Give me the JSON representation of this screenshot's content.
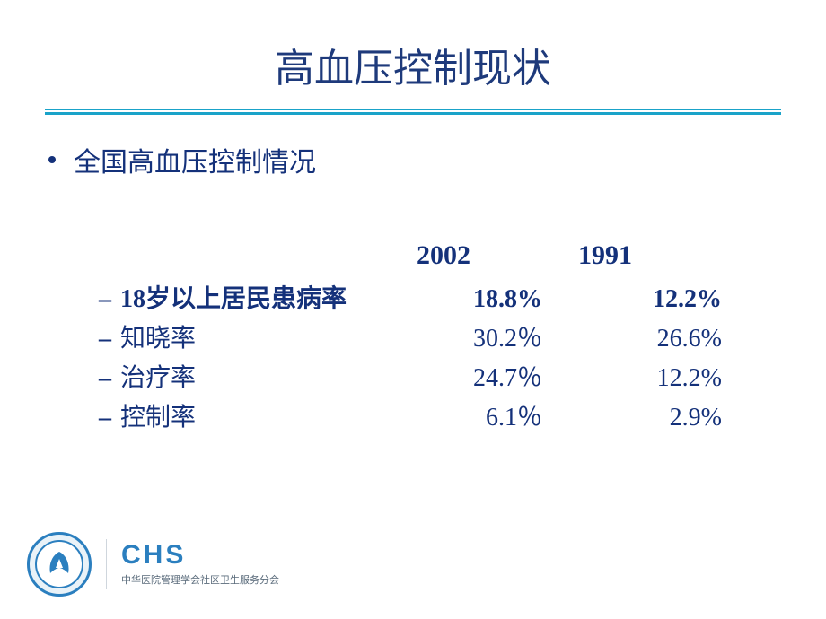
{
  "colors": {
    "title": "#1e3a7b",
    "divider": "#1aa3c9",
    "bullet": "#14317a",
    "text_primary": "#14317a",
    "logo_ring": "#2b7fbf",
    "logo_inner": "#ffffff",
    "logo_fill": "#2b7fbf",
    "chs": "#2b7fbf",
    "chs_sub": "#5a6b7b",
    "background": "#ffffff"
  },
  "typography": {
    "title_size": 44,
    "bullet_size": 30,
    "header_size": 30,
    "row_size": 28,
    "chs_size": 30,
    "chs_sub_size": 11
  },
  "layout": {
    "label_width": 290,
    "col1_width": 180,
    "col2_width": 200,
    "header_indent": 354,
    "header_gap_col1": 180,
    "header_gap_col2": 200
  },
  "title": "高血压控制现状",
  "bullet": "全国高血压控制情况",
  "header": {
    "col1": "2002",
    "col2": "1991"
  },
  "rows": [
    {
      "label": "18岁以上居民患病率",
      "v1": "18.8%",
      "v2": "12.2%",
      "bold": true
    },
    {
      "label": "知晓率",
      "v1": "30.2％",
      "v2": "26.6%",
      "bold": false
    },
    {
      "label": "治疗率",
      "v1": "24.7％",
      "v2": "12.2%",
      "bold": false
    },
    {
      "label": "控制率",
      "v1": "6.1％",
      "v2": "2.9%",
      "bold": false
    }
  ],
  "footer": {
    "chs": "CHS",
    "chs_sub": "中华医院管理学会社区卫生服务分会"
  }
}
